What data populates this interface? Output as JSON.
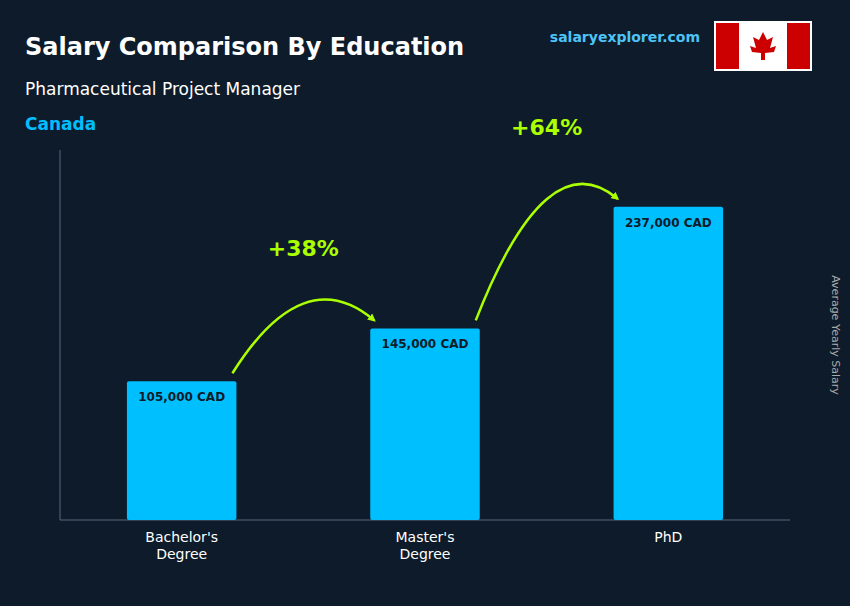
{
  "chart_data": {
    "type": "bar",
    "title": "Salary Comparison By Education",
    "subtitle": "Pharmaceutical Project Manager",
    "country": "Canada",
    "watermark": "salaryexplorer.com",
    "y_label": "Average Yearly Salary",
    "categories": [
      "Bachelor's\nDegree",
      "Master's\nDegree",
      "PhD"
    ],
    "values": [
      105000,
      145000,
      237000
    ],
    "value_labels": [
      "105,000 CAD",
      "145,000 CAD",
      "237,000 CAD"
    ],
    "data_labels": true,
    "color": "#00BFFF",
    "ylim": [
      0,
      280000
    ],
    "tick_labels": false,
    "grid": false,
    "annotations": [
      {
        "text": "+38%",
        "color": "#AAFF00"
      },
      {
        "text": "+64%",
        "color": "#AAFF00"
      }
    ]
  }
}
